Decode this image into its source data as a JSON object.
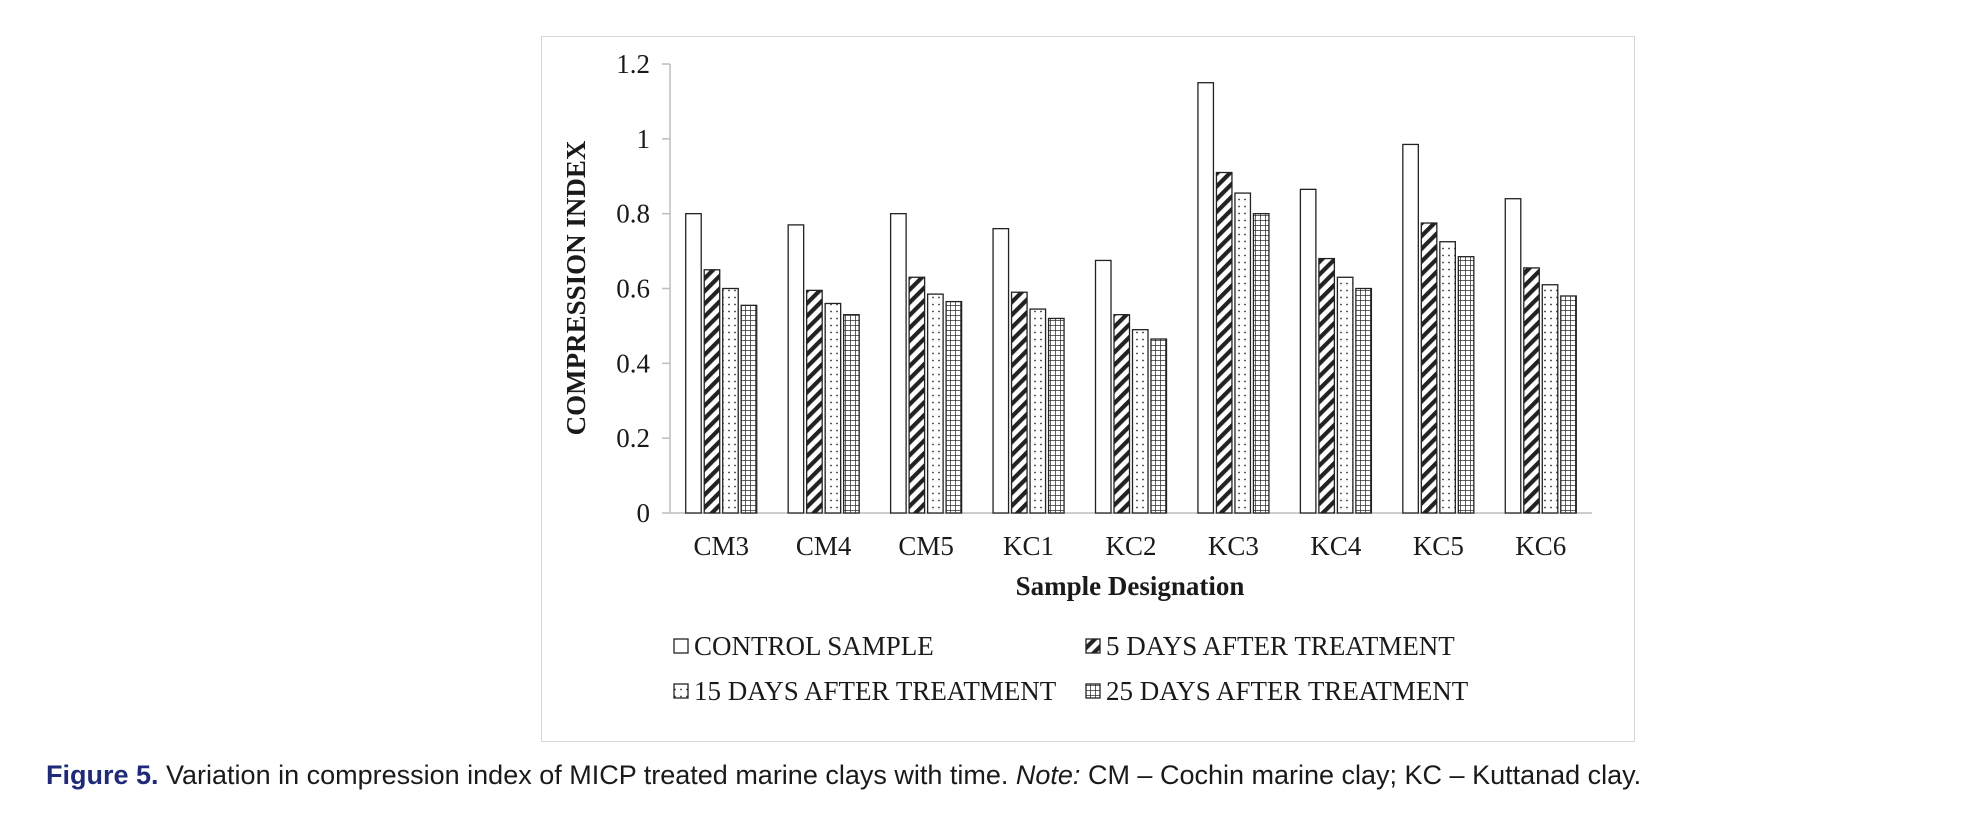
{
  "chart_data": {
    "type": "bar",
    "title": "",
    "xlabel": "Sample Designation",
    "ylabel": "COMPRESSION INDEX",
    "ylim": [
      0,
      1.2
    ],
    "yticks": [
      "0",
      "0.2",
      "0.4",
      "0.6",
      "0.8",
      "1",
      "1.2"
    ],
    "categories": [
      "CM3",
      "CM4",
      "CM5",
      "KC1",
      "KC2",
      "KC3",
      "KC4",
      "KC5",
      "KC6"
    ],
    "series": [
      {
        "name": "CONTROL SAMPLE",
        "pattern": "empty",
        "values": [
          0.8,
          0.77,
          0.8,
          0.76,
          0.675,
          1.15,
          0.865,
          0.985,
          0.84
        ]
      },
      {
        "name": "5 DAYS AFTER TREATMENT",
        "pattern": "diagonal",
        "values": [
          0.65,
          0.595,
          0.63,
          0.59,
          0.53,
          0.91,
          0.68,
          0.775,
          0.655
        ]
      },
      {
        "name": "15 DAYS AFTER TREATMENT",
        "pattern": "dots",
        "values": [
          0.6,
          0.56,
          0.585,
          0.545,
          0.49,
          0.855,
          0.63,
          0.725,
          0.61
        ]
      },
      {
        "name": "25 DAYS AFTER TREATMENT",
        "pattern": "grid",
        "values": [
          0.555,
          0.53,
          0.565,
          0.52,
          0.465,
          0.8,
          0.6,
          0.685,
          0.58
        ]
      }
    ],
    "legend_position": "bottom",
    "grid": false,
    "colors": {
      "stroke": "#222222",
      "fill": "#ffffff"
    }
  },
  "caption": {
    "figure_label": "Figure 5.",
    "text": " Variation in compression index of MICP treated marine clays with time. ",
    "note_label": "Note:",
    "note_text": " CM – Cochin marine clay; KC – Kuttanad clay."
  }
}
